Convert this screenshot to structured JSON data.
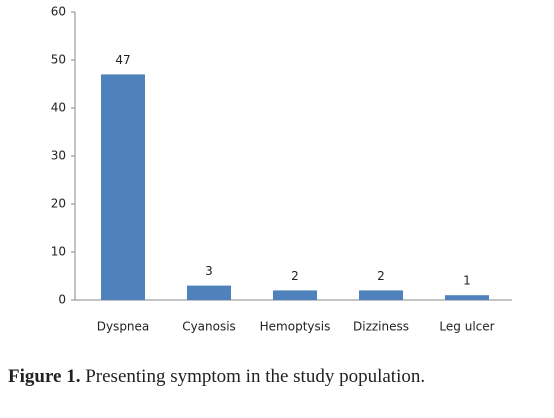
{
  "chart_data": {
    "type": "bar",
    "categories": [
      "Dyspnea",
      "Cyanosis",
      "Hemoptysis",
      "Dizziness",
      "Leg ulcer"
    ],
    "values": [
      47,
      3,
      2,
      2,
      1
    ],
    "color": "#4f81bd",
    "ylim": [
      0,
      60
    ],
    "yticks": [
      0,
      10,
      20,
      30,
      40,
      50,
      60
    ],
    "grid": false
  },
  "caption_label": "Figure 1.",
  "caption": "Presenting symptom in the study population."
}
